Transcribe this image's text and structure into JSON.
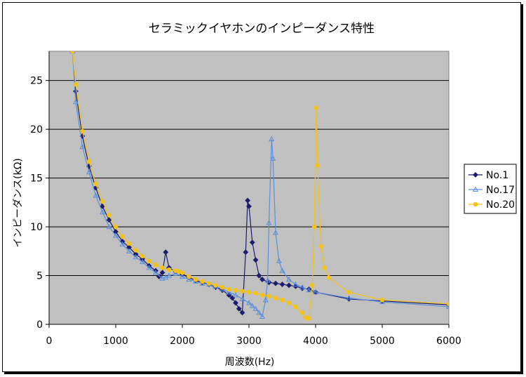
{
  "chart_data": {
    "type": "line",
    "title": "セラミックイヤホンのインピーダンス特性",
    "xlabel": "周波数(Hz)",
    "ylabel": "インピーダンス(kΩ)",
    "xlim": [
      0,
      6000
    ],
    "ylim": [
      0,
      28
    ],
    "xticks": [
      "0",
      "1000",
      "2000",
      "3000",
      "4000",
      "5000",
      "6000"
    ],
    "yticks": [
      "0",
      "5",
      "10",
      "15",
      "20",
      "25"
    ],
    "plot_background": "#c0c0c0",
    "grid": "horizontal",
    "legend_position": "right",
    "series": [
      {
        "name": "No.1",
        "color": "#1c1c6e",
        "marker": "diamond",
        "points": [
          [
            350,
            28
          ],
          [
            400,
            23.9
          ],
          [
            500,
            19.3
          ],
          [
            600,
            16.2
          ],
          [
            700,
            14.0
          ],
          [
            800,
            12.1
          ],
          [
            900,
            10.7
          ],
          [
            1000,
            9.5
          ],
          [
            1100,
            8.5
          ],
          [
            1200,
            7.9
          ],
          [
            1300,
            7.2
          ],
          [
            1400,
            6.7
          ],
          [
            1500,
            6.0
          ],
          [
            1600,
            5.5
          ],
          [
            1650,
            4.9
          ],
          [
            1700,
            5.3
          ],
          [
            1750,
            7.4
          ],
          [
            1800,
            5.8
          ],
          [
            1900,
            5.4
          ],
          [
            2000,
            5.1
          ],
          [
            2100,
            4.8
          ],
          [
            2200,
            4.5
          ],
          [
            2300,
            4.3
          ],
          [
            2400,
            4.1
          ],
          [
            2500,
            3.8
          ],
          [
            2600,
            3.5
          ],
          [
            2700,
            3.0
          ],
          [
            2750,
            2.7
          ],
          [
            2800,
            2.2
          ],
          [
            2850,
            1.6
          ],
          [
            2900,
            1.2
          ],
          [
            2950,
            7.4
          ],
          [
            2980,
            12.7
          ],
          [
            3000,
            12.1
          ],
          [
            3050,
            8.4
          ],
          [
            3100,
            6.6
          ],
          [
            3150,
            5.0
          ],
          [
            3200,
            4.6
          ],
          [
            3300,
            4.3
          ],
          [
            3400,
            4.2
          ],
          [
            3500,
            4.1
          ],
          [
            3600,
            4.0
          ],
          [
            3700,
            3.9
          ],
          [
            3800,
            3.7
          ],
          [
            3900,
            3.6
          ],
          [
            4000,
            3.3
          ],
          [
            4500,
            2.6
          ],
          [
            5000,
            2.4
          ],
          [
            6000,
            2.0
          ]
        ]
      },
      {
        "name": "No.17",
        "color": "#5b8fdc",
        "marker": "triangle",
        "points": [
          [
            350,
            28
          ],
          [
            400,
            22.8
          ],
          [
            500,
            18.2
          ],
          [
            600,
            15.6
          ],
          [
            700,
            13.2
          ],
          [
            800,
            11.5
          ],
          [
            900,
            10.0
          ],
          [
            1000,
            9.1
          ],
          [
            1100,
            8.2
          ],
          [
            1200,
            7.5
          ],
          [
            1300,
            6.9
          ],
          [
            1400,
            6.4
          ],
          [
            1500,
            5.8
          ],
          [
            1600,
            5.3
          ],
          [
            1700,
            4.7
          ],
          [
            1750,
            4.8
          ],
          [
            1800,
            5.0
          ],
          [
            1900,
            5.2
          ],
          [
            2000,
            4.9
          ],
          [
            2100,
            4.6
          ],
          [
            2200,
            4.4
          ],
          [
            2300,
            4.2
          ],
          [
            2400,
            4.1
          ],
          [
            2500,
            3.9
          ],
          [
            2600,
            3.6
          ],
          [
            2700,
            3.3
          ],
          [
            2800,
            3.0
          ],
          [
            2900,
            2.6
          ],
          [
            3000,
            2.2
          ],
          [
            3050,
            1.9
          ],
          [
            3100,
            1.6
          ],
          [
            3150,
            1.2
          ],
          [
            3200,
            0.8
          ],
          [
            3250,
            2.5
          ],
          [
            3280,
            4.5
          ],
          [
            3300,
            10.4
          ],
          [
            3340,
            19.0
          ],
          [
            3360,
            17.0
          ],
          [
            3400,
            9.4
          ],
          [
            3450,
            6.5
          ],
          [
            3500,
            5.5
          ],
          [
            3600,
            4.6
          ],
          [
            3700,
            4.1
          ],
          [
            3800,
            3.8
          ],
          [
            3900,
            3.5
          ],
          [
            4000,
            3.3
          ],
          [
            4500,
            2.7
          ],
          [
            5000,
            2.3
          ],
          [
            6000,
            1.8
          ]
        ]
      },
      {
        "name": "No.20",
        "color": "#f2c21a",
        "marker": "circle",
        "points": [
          [
            350,
            28
          ],
          [
            400,
            24.6
          ],
          [
            500,
            19.8
          ],
          [
            600,
            16.7
          ],
          [
            700,
            14.4
          ],
          [
            800,
            12.6
          ],
          [
            900,
            11.2
          ],
          [
            1000,
            10.0
          ],
          [
            1100,
            9.0
          ],
          [
            1200,
            8.3
          ],
          [
            1300,
            7.6
          ],
          [
            1400,
            7.0
          ],
          [
            1500,
            6.5
          ],
          [
            1600,
            6.1
          ],
          [
            1700,
            5.8
          ],
          [
            1800,
            5.6
          ],
          [
            1900,
            5.5
          ],
          [
            1950,
            5.4
          ],
          [
            2000,
            5.3
          ],
          [
            2100,
            4.9
          ],
          [
            2200,
            4.6
          ],
          [
            2300,
            4.4
          ],
          [
            2400,
            4.2
          ],
          [
            2500,
            4.0
          ],
          [
            2600,
            3.8
          ],
          [
            2700,
            3.6
          ],
          [
            2800,
            3.5
          ],
          [
            2900,
            3.4
          ],
          [
            3000,
            3.3
          ],
          [
            3100,
            3.2
          ],
          [
            3200,
            3.0
          ],
          [
            3300,
            2.9
          ],
          [
            3400,
            2.7
          ],
          [
            3500,
            2.5
          ],
          [
            3600,
            2.2
          ],
          [
            3700,
            1.8
          ],
          [
            3800,
            1.2
          ],
          [
            3850,
            0.7
          ],
          [
            3900,
            0.6
          ],
          [
            3950,
            4.0
          ],
          [
            3980,
            10.0
          ],
          [
            4010,
            22.2
          ],
          [
            4030,
            16.3
          ],
          [
            4080,
            8.0
          ],
          [
            4130,
            5.8
          ],
          [
            4200,
            4.8
          ],
          [
            4500,
            3.3
          ],
          [
            5000,
            2.5
          ],
          [
            6000,
            2.1
          ]
        ]
      }
    ]
  }
}
